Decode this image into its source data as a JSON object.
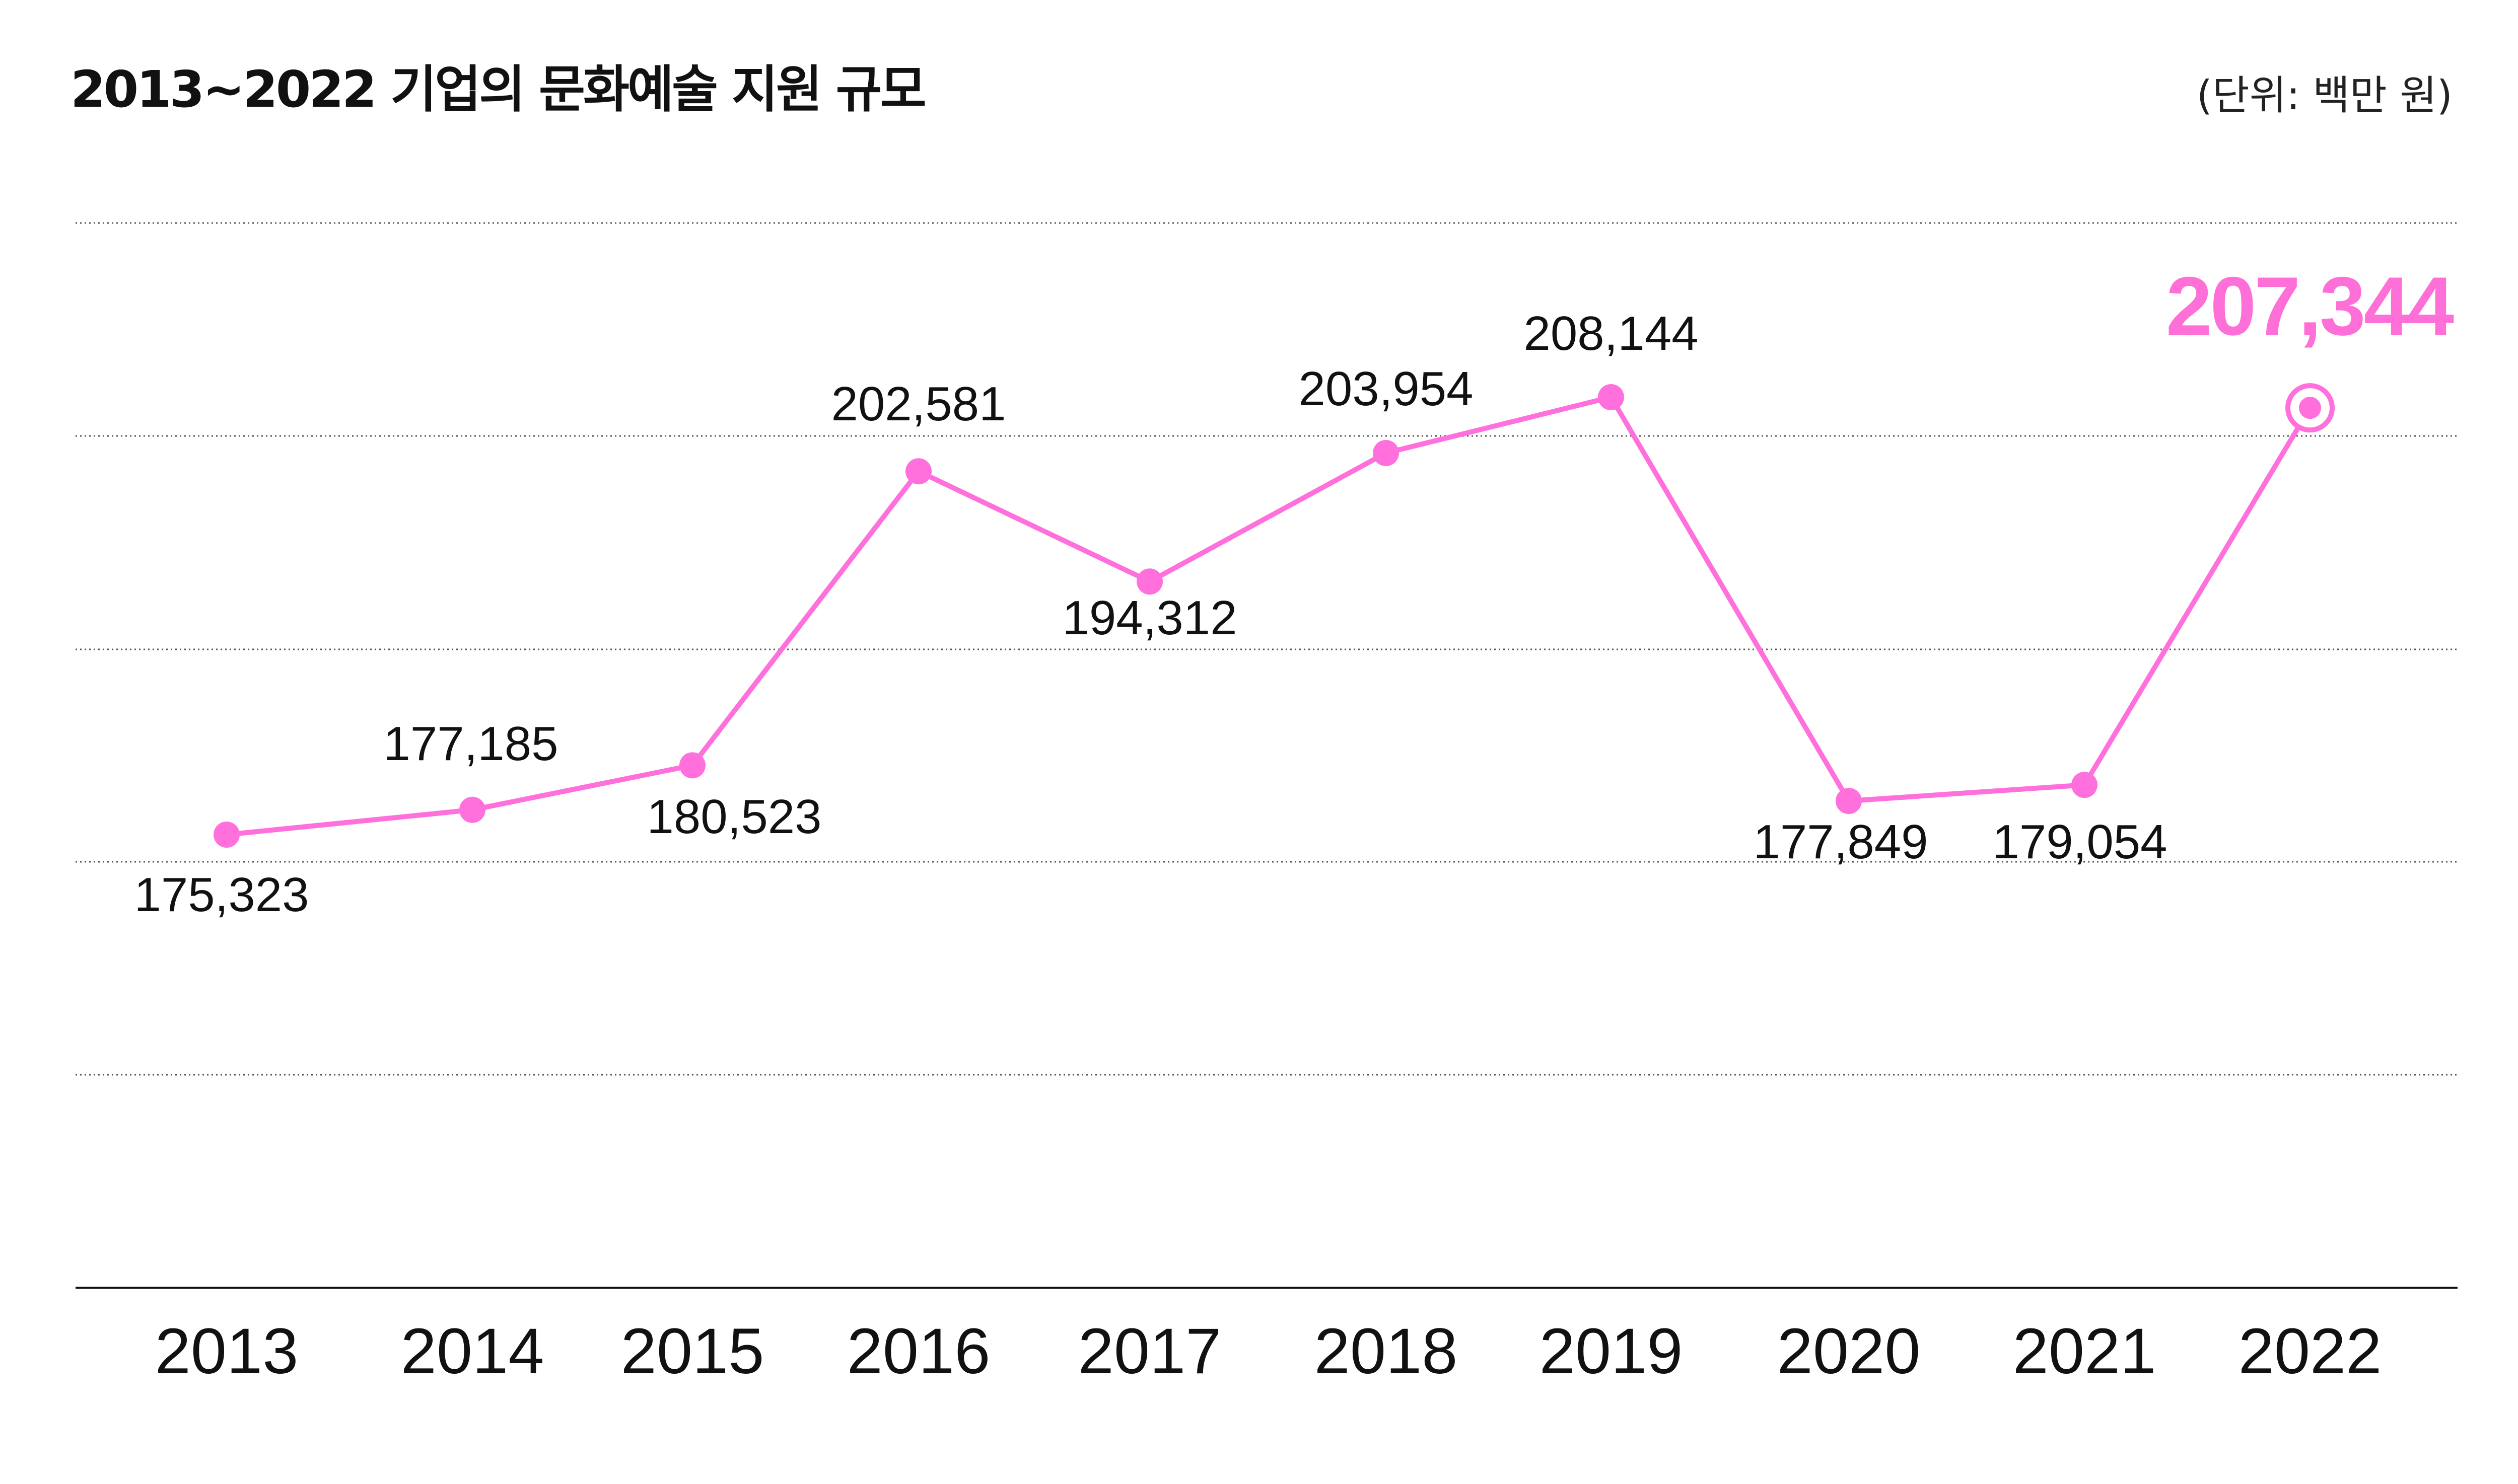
{
  "title": "2013~2022 기업의 문화예술 지원 규모",
  "unit": "(단위: 백만 원)",
  "colors": {
    "line": "#ff70dc",
    "highlight_text": "#ff6fd8",
    "text": "#111111",
    "grid": "#555555",
    "axis": "#111111"
  },
  "chart_data": {
    "type": "line",
    "title": "2013~2022 기업의 문화예술 지원 규모",
    "unit": "(단위: 백만 원)",
    "xlabel": "",
    "ylabel": "",
    "categories": [
      "2013",
      "2014",
      "2015",
      "2016",
      "2017",
      "2018",
      "2019",
      "2020",
      "2021",
      "2022"
    ],
    "series": [
      {
        "values": [
          175323,
          177185,
          180523,
          202581,
          194312,
          203954,
          208144,
          177849,
          179054,
          207344
        ]
      }
    ],
    "data_labels": [
      "175,323",
      "177,185",
      "180,523",
      "202,581",
      "194,312",
      "203,954",
      "208,144",
      "177,849",
      "179,054",
      "207,344"
    ],
    "highlight": {
      "category": "2022",
      "label": "207,344"
    },
    "grid": true,
    "legend": "none"
  }
}
